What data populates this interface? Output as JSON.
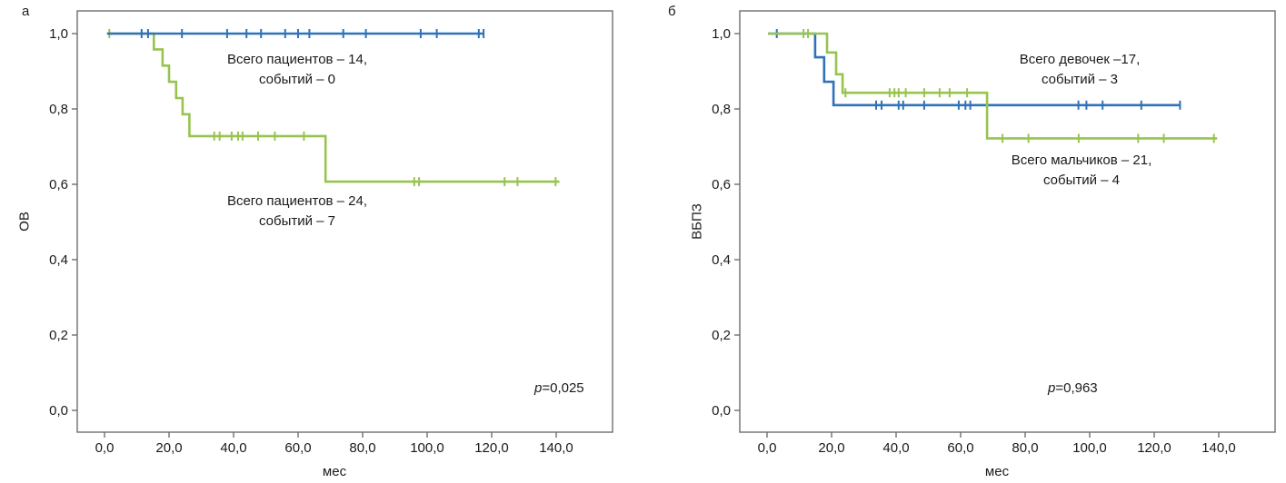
{
  "chart_data": [
    {
      "type": "line",
      "subtype": "kaplan-meier-step",
      "panel_label": "а",
      "ylabel": "ОВ",
      "xlabel": "мес",
      "p_label": {
        "italic": "p",
        "text": "=0,025"
      },
      "x_ticks": [
        0,
        20,
        40,
        60,
        80,
        100,
        120,
        140
      ],
      "x_tick_labels": [
        "0,0",
        "20,0",
        "40,0",
        "60,0",
        "80,0",
        "100,0",
        "120,0",
        "140,0"
      ],
      "y_ticks": [
        1.0,
        0.8,
        0.6,
        0.4,
        0.2,
        0.0
      ],
      "y_tick_labels": [
        "1,0",
        "0,8",
        "0,6",
        "0,4",
        "0,2",
        "0,0"
      ],
      "xlim": [
        -8.5,
        157.5
      ],
      "ylim": [
        -0.06,
        1.06
      ],
      "grid": false,
      "legend_position": "none",
      "series": [
        {
          "name": "patients-24",
          "color": "#97c44f",
          "start_x": 0.8,
          "start_y": 1.0,
          "steps": [
            [
              15.3,
              0.958
            ],
            [
              18.0,
              0.915
            ],
            [
              20.0,
              0.872
            ],
            [
              22.2,
              0.829
            ],
            [
              24.2,
              0.786
            ],
            [
              26.3,
              0.728
            ],
            [
              68.5,
              0.607
            ]
          ],
          "end_x": 141.0,
          "censors": [
            [
              1.5,
              1.0
            ],
            [
              34.0,
              0.728
            ],
            [
              35.7,
              0.728
            ],
            [
              39.4,
              0.728
            ],
            [
              41.4,
              0.728
            ],
            [
              42.8,
              0.728
            ],
            [
              47.6,
              0.728
            ],
            [
              52.8,
              0.728
            ],
            [
              61.8,
              0.728
            ],
            [
              96.0,
              0.607
            ],
            [
              97.5,
              0.607
            ],
            [
              124.0,
              0.607
            ],
            [
              128.0,
              0.607
            ],
            [
              139.8,
              0.607
            ]
          ]
        },
        {
          "name": "patients-14",
          "color": "#2f72b9",
          "start_x": 0.8,
          "start_y": 1.0,
          "steps": [],
          "end_x": 117.5,
          "censors": [
            [
              11.5,
              1.0
            ],
            [
              13.5,
              1.0
            ],
            [
              24.0,
              1.0
            ],
            [
              38.0,
              1.0
            ],
            [
              44.0,
              1.0
            ],
            [
              48.5,
              1.0
            ],
            [
              56.0,
              1.0
            ],
            [
              60.0,
              1.0
            ],
            [
              63.5,
              1.0
            ],
            [
              74.0,
              1.0
            ],
            [
              81.0,
              1.0
            ],
            [
              98.0,
              1.0
            ],
            [
              103.0,
              1.0
            ],
            [
              116.0,
              1.0
            ],
            [
              117.5,
              1.0
            ]
          ]
        }
      ],
      "annotations": [
        {
          "lines": [
            "Всего пациентов – 14,",
            "событий – 0"
          ]
        },
        {
          "lines": [
            "Всего пациентов – 24,",
            "событий – 7"
          ]
        }
      ]
    },
    {
      "type": "line",
      "subtype": "kaplan-meier-step",
      "panel_label": "б",
      "ylabel": "ВБПЗ",
      "xlabel": "мес",
      "p_label": {
        "italic": "p",
        "text": "=0,963"
      },
      "x_ticks": [
        0,
        20,
        40,
        60,
        80,
        100,
        120,
        140
      ],
      "x_tick_labels": [
        "0,0",
        "20,0",
        "40,0",
        "60,0",
        "80,0",
        "100,0",
        "120,0",
        "140,0"
      ],
      "y_ticks": [
        1.0,
        0.8,
        0.6,
        0.4,
        0.2,
        0.0
      ],
      "y_tick_labels": [
        "1,0",
        "0,8",
        "0,6",
        "0,4",
        "0,2",
        "0,0"
      ],
      "xlim": [
        -8.5,
        157.5
      ],
      "ylim": [
        -0.06,
        1.06
      ],
      "grid": false,
      "legend_position": "none",
      "series": [
        {
          "name": "girls-17",
          "color": "#2f72b9",
          "start_x": 0.3,
          "start_y": 1.0,
          "steps": [
            [
              14.9,
              0.937
            ],
            [
              17.7,
              0.872
            ],
            [
              20.6,
              0.81
            ]
          ],
          "end_x": 128.0,
          "censors": [
            [
              3.0,
              1.0
            ],
            [
              33.8,
              0.81
            ],
            [
              35.5,
              0.81
            ],
            [
              40.8,
              0.81
            ],
            [
              42.2,
              0.81
            ],
            [
              48.7,
              0.81
            ],
            [
              59.4,
              0.81
            ],
            [
              61.5,
              0.81
            ],
            [
              63.0,
              0.81
            ],
            [
              96.5,
              0.81
            ],
            [
              99.0,
              0.81
            ],
            [
              104.0,
              0.81
            ],
            [
              116.0,
              0.81
            ],
            [
              128.0,
              0.81
            ]
          ]
        },
        {
          "name": "boys-21",
          "color": "#97c44f",
          "start_x": 0.3,
          "start_y": 1.0,
          "steps": [
            [
              18.6,
              0.95
            ],
            [
              21.4,
              0.892
            ],
            [
              23.4,
              0.843
            ],
            [
              68.2,
              0.722
            ]
          ],
          "end_x": 139.5,
          "censors": [
            [
              11.3,
              1.0
            ],
            [
              12.7,
              1.0
            ],
            [
              24.3,
              0.843
            ],
            [
              38.0,
              0.843
            ],
            [
              39.5,
              0.843
            ],
            [
              40.8,
              0.843
            ],
            [
              43.0,
              0.843
            ],
            [
              48.7,
              0.843
            ],
            [
              53.5,
              0.843
            ],
            [
              56.6,
              0.843
            ],
            [
              62.0,
              0.843
            ],
            [
              73.0,
              0.722
            ],
            [
              81.0,
              0.722
            ],
            [
              96.6,
              0.722
            ],
            [
              115.0,
              0.722
            ],
            [
              123.0,
              0.722
            ],
            [
              138.5,
              0.722
            ]
          ]
        }
      ],
      "annotations": [
        {
          "lines": [
            "Всего девочек –17,",
            "событий – 3"
          ]
        },
        {
          "lines": [
            "Всего мальчиков – 21,",
            "событий – 4"
          ]
        }
      ]
    }
  ]
}
